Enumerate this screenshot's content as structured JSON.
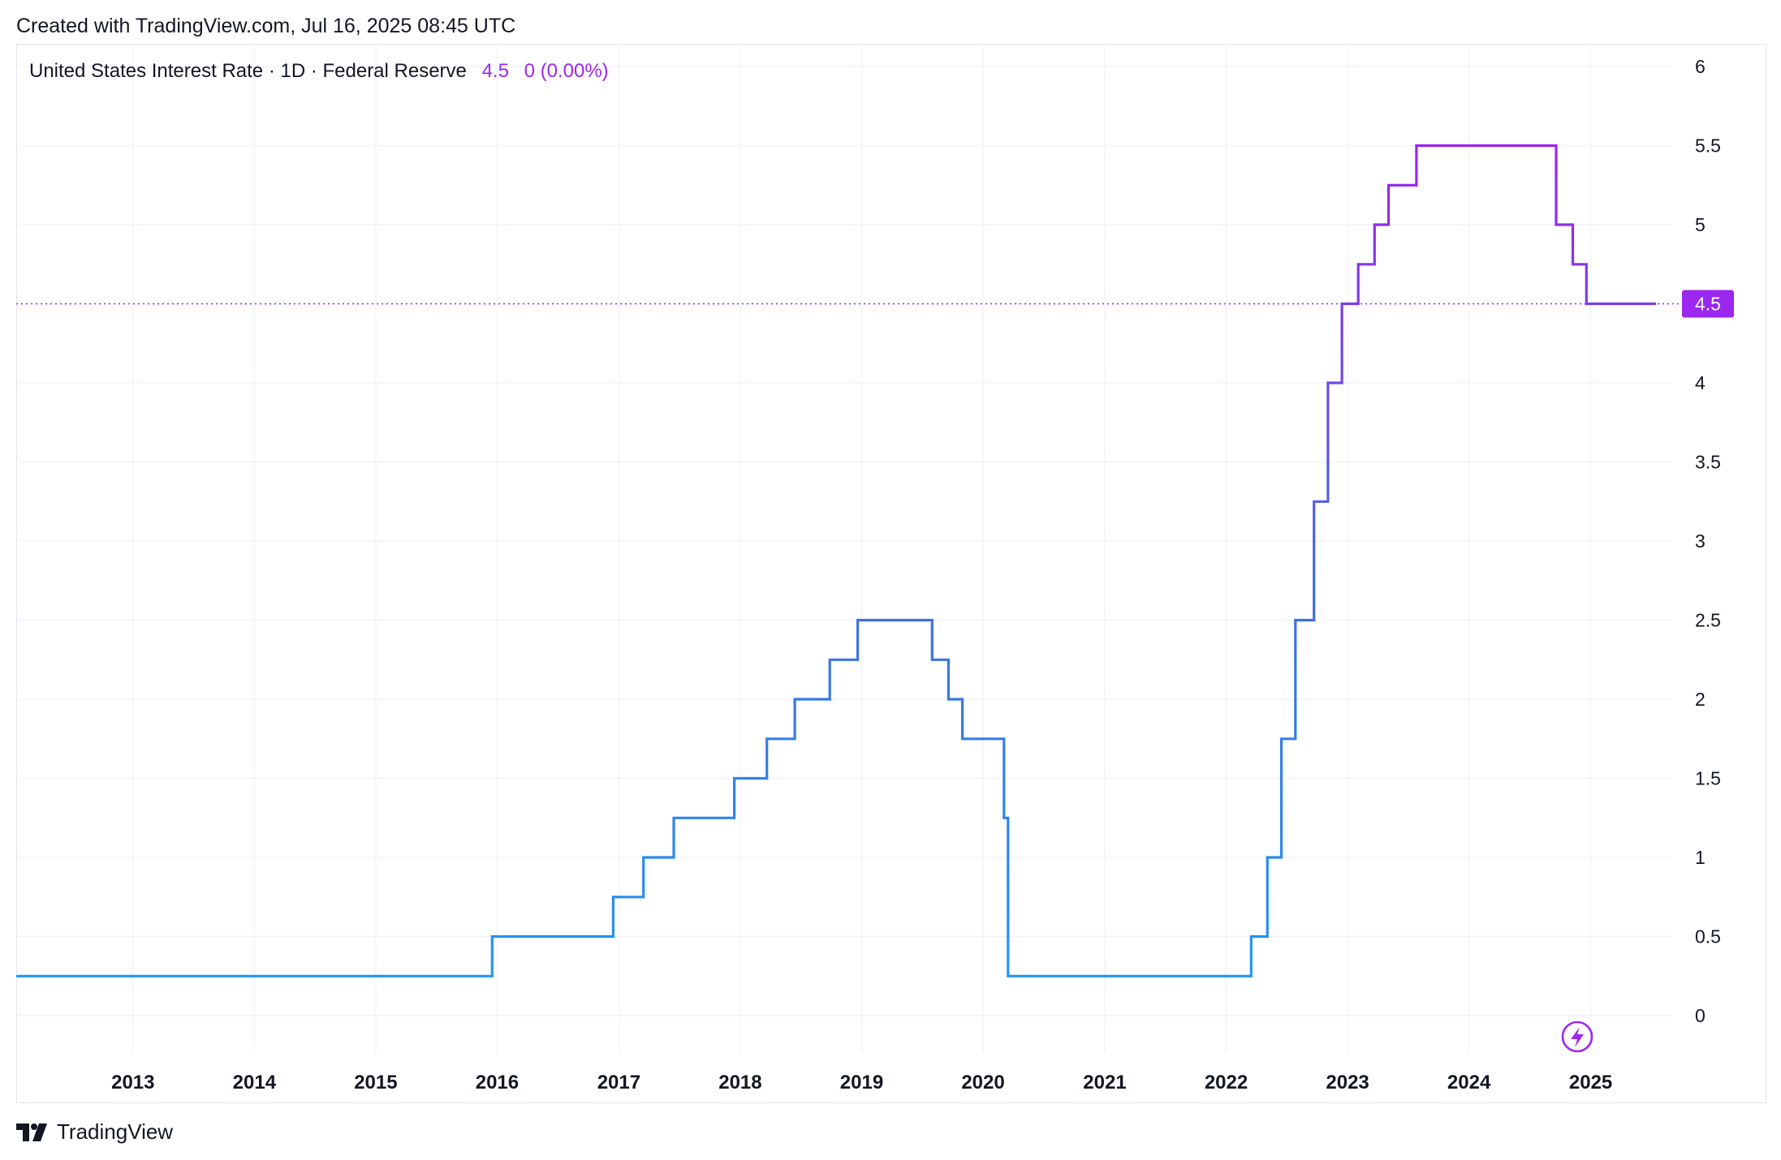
{
  "header": {
    "created_text": "Created with TradingView.com, Jul 16, 2025 08:45 UTC"
  },
  "legend": {
    "symbol_text": "United States Interest Rate · 1D · Federal Reserve",
    "last_value": "4.5",
    "change_text": "0 (0.00%)"
  },
  "price_tag": "4.5",
  "footer": {
    "brand": "TradingView"
  },
  "icons": {
    "logo": "tradingview-logo-icon",
    "flash": "lightning-icon"
  },
  "colors": {
    "line_start": "#2196f3",
    "line_mid": "#3f6fe0",
    "line_end": "#a020f0",
    "accent": "#9c27f0",
    "grid": "#f0f3fa"
  },
  "chart_data": {
    "type": "line",
    "title": "United States Interest Rate · 1D · Federal Reserve",
    "xlabel": "",
    "ylabel": "",
    "x_ticks": [
      "2013",
      "2014",
      "2015",
      "2016",
      "2017",
      "2018",
      "2019",
      "2020",
      "2021",
      "2022",
      "2023",
      "2024",
      "2025"
    ],
    "y_ticks": [
      "0",
      "0.5",
      "1",
      "1.5",
      "2",
      "2.5",
      "3",
      "3.5",
      "4",
      "4.5",
      "5",
      "5.5",
      "6"
    ],
    "ylim": [
      -0.25,
      6.1
    ],
    "xlim": [
      "2012-01-16",
      "2026-04-01"
    ],
    "last_value": 4.5,
    "grid": true,
    "series": [
      {
        "step": "after",
        "points": [
          [
            "2012-01-16",
            0.25
          ],
          [
            "2015-12-17",
            0.5
          ],
          [
            "2016-12-15",
            0.75
          ],
          [
            "2017-03-16",
            1.0
          ],
          [
            "2017-06-15",
            1.25
          ],
          [
            "2017-12-14",
            1.5
          ],
          [
            "2018-03-22",
            1.75
          ],
          [
            "2018-06-14",
            2.0
          ],
          [
            "2018-09-27",
            2.25
          ],
          [
            "2018-12-20",
            2.5
          ],
          [
            "2019-08-01",
            2.25
          ],
          [
            "2019-09-19",
            2.0
          ],
          [
            "2019-10-31",
            1.75
          ],
          [
            "2020-03-04",
            1.25
          ],
          [
            "2020-03-16",
            0.25
          ],
          [
            "2022-03-17",
            0.5
          ],
          [
            "2022-05-05",
            1.0
          ],
          [
            "2022-06-16",
            1.75
          ],
          [
            "2022-07-28",
            2.5
          ],
          [
            "2022-09-22",
            3.25
          ],
          [
            "2022-11-03",
            4.0
          ],
          [
            "2022-12-15",
            4.5
          ],
          [
            "2023-02-02",
            4.75
          ],
          [
            "2023-03-23",
            5.0
          ],
          [
            "2023-05-04",
            5.25
          ],
          [
            "2023-07-27",
            5.5
          ],
          [
            "2024-09-19",
            5.0
          ],
          [
            "2024-11-08",
            4.75
          ],
          [
            "2024-12-19",
            4.5
          ],
          [
            "2025-07-16",
            4.5
          ]
        ]
      }
    ]
  }
}
